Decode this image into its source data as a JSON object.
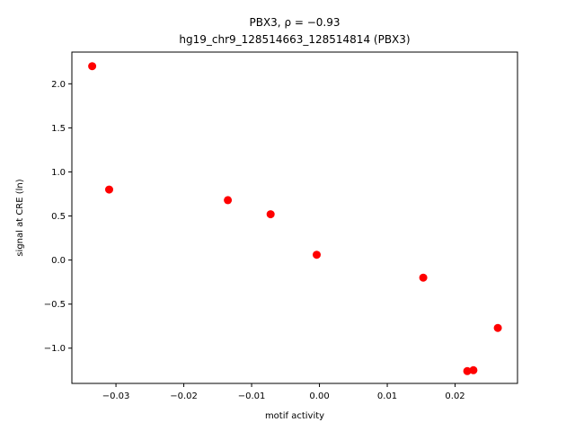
{
  "chart_data": {
    "type": "scatter",
    "title_line1": "PBX3, ρ = −0.93",
    "title_line2": "hg19_chr9_128514663_128514814 (PBX3)",
    "xlabel": "motif activity",
    "ylabel": "signal at CRE (ln)",
    "xlim": [
      -0.0365,
      0.0292
    ],
    "ylim": [
      -1.4,
      2.36
    ],
    "x_ticks": [
      -0.03,
      -0.02,
      -0.01,
      0.0,
      0.01,
      0.02
    ],
    "x_tick_labels": [
      "−0.03",
      "−0.02",
      "−0.01",
      "0.00",
      "0.01",
      "0.02"
    ],
    "y_ticks": [
      -1.0,
      -0.5,
      0.0,
      0.5,
      1.0,
      1.5,
      2.0
    ],
    "y_tick_labels": [
      "−1.0",
      "−0.5",
      "0.0",
      "0.5",
      "1.0",
      "1.5",
      "2.0"
    ],
    "grid": false,
    "marker_color": "#ff0000",
    "points": [
      {
        "x": -0.0335,
        "y": 2.2
      },
      {
        "x": -0.031,
        "y": 0.8
      },
      {
        "x": -0.0135,
        "y": 0.68
      },
      {
        "x": -0.0072,
        "y": 0.52
      },
      {
        "x": -0.0004,
        "y": 0.06
      },
      {
        "x": 0.0153,
        "y": -0.2
      },
      {
        "x": 0.0218,
        "y": -1.26
      },
      {
        "x": 0.0227,
        "y": -1.25
      },
      {
        "x": 0.0263,
        "y": -0.77
      }
    ]
  }
}
